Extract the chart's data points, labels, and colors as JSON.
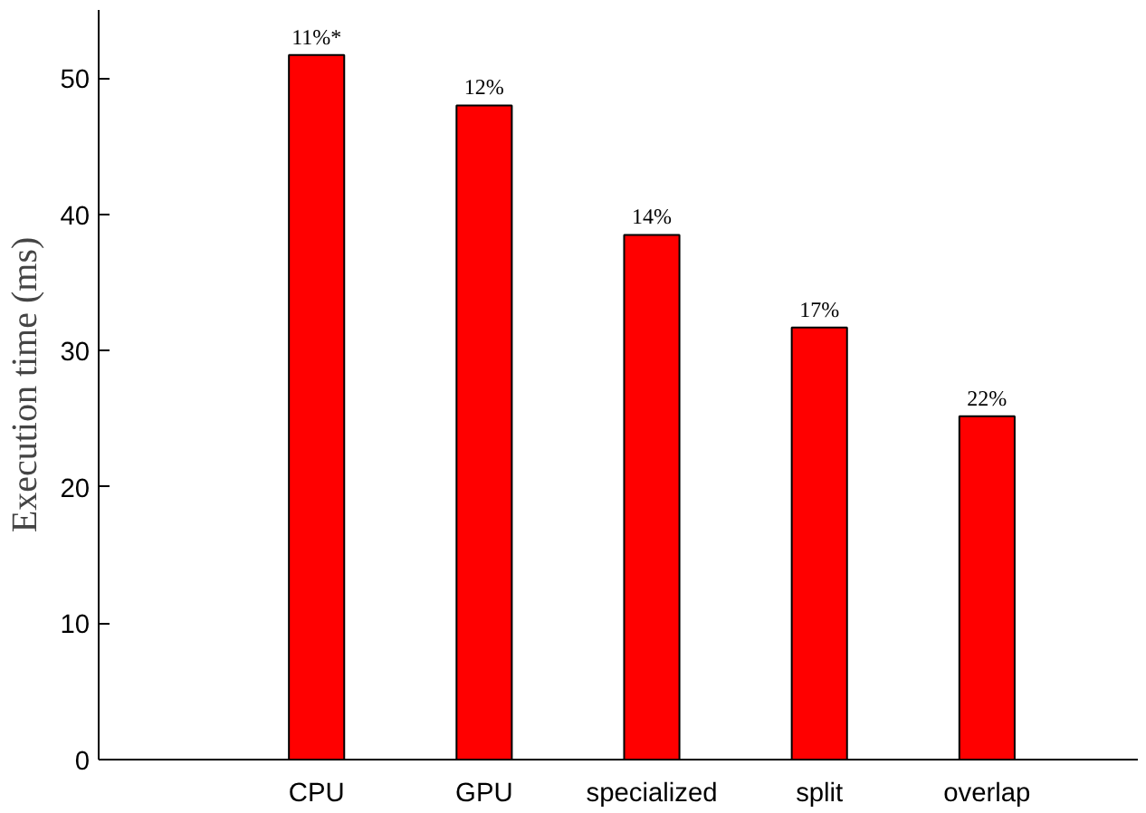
{
  "chart_data": {
    "type": "bar",
    "ylabel": "Execution time (ms)",
    "categories": [
      "CPU",
      "GPU",
      "specialized",
      "split",
      "overlap"
    ],
    "values": [
      51.7,
      48.0,
      38.5,
      31.7,
      25.2
    ],
    "annotations": [
      {
        "text": "11%*",
        "x": "CPU",
        "y": 51.7
      },
      {
        "text": "12%",
        "x": "GPU",
        "y": 48.0
      },
      {
        "text": "14%",
        "x": "specialized",
        "y": 38.5
      },
      {
        "text": "17%",
        "x": "split",
        "y": 31.7
      },
      {
        "text": "22%",
        "x": "overlap",
        "y": 25.2
      }
    ],
    "color": "#ff0000",
    "ylim": [
      0,
      55
    ],
    "yticks": [
      0,
      10,
      20,
      30,
      40,
      50
    ],
    "grid": false
  }
}
